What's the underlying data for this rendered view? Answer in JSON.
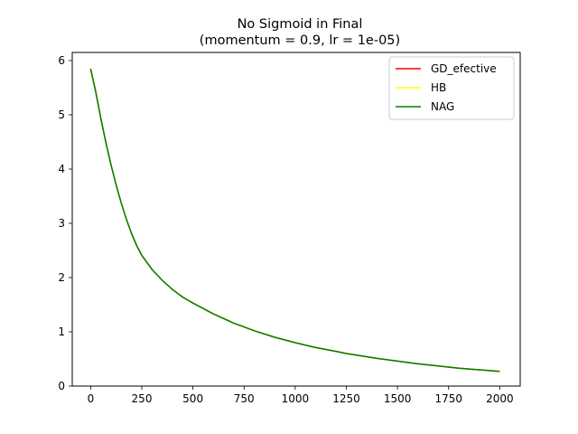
{
  "chart_data": {
    "type": "line",
    "title": "No Sigmoid in Final",
    "subtitle": "(momentum = 0.9, lr = 1e-05)",
    "xlabel": "",
    "ylabel": "",
    "xlim": [
      -90,
      2100
    ],
    "ylim": [
      0,
      6.15
    ],
    "xticks": [
      0,
      250,
      500,
      750,
      1000,
      1250,
      1500,
      1750,
      2000
    ],
    "xtick_labels": [
      "0",
      "250",
      "500",
      "750",
      "1000",
      "1250",
      "1500",
      "1750",
      "2000"
    ],
    "yticks": [
      0,
      1,
      2,
      3,
      4,
      5,
      6
    ],
    "ytick_labels": [
      "0",
      "1",
      "2",
      "3",
      "4",
      "5",
      "6"
    ],
    "grid": false,
    "legend_position": "top-right",
    "x": [
      0,
      25,
      50,
      75,
      100,
      125,
      150,
      175,
      200,
      225,
      250,
      300,
      350,
      400,
      450,
      500,
      600,
      700,
      750,
      800,
      900,
      1000,
      1100,
      1200,
      1250,
      1300,
      1400,
      1500,
      1600,
      1700,
      1750,
      1800,
      1900,
      2000
    ],
    "series": [
      {
        "name": "GD_efective",
        "color": "#ff0000",
        "values": [
          5.85,
          5.42,
          4.93,
          4.48,
          4.07,
          3.7,
          3.37,
          3.07,
          2.81,
          2.59,
          2.41,
          2.15,
          1.95,
          1.78,
          1.64,
          1.53,
          1.33,
          1.16,
          1.09,
          1.02,
          0.9,
          0.8,
          0.71,
          0.64,
          0.6,
          0.57,
          0.51,
          0.46,
          0.41,
          0.37,
          0.35,
          0.33,
          0.3,
          0.27
        ]
      },
      {
        "name": "HB",
        "color": "#ffff00",
        "values": [
          5.85,
          5.42,
          4.93,
          4.48,
          4.07,
          3.7,
          3.37,
          3.07,
          2.81,
          2.59,
          2.41,
          2.15,
          1.95,
          1.78,
          1.64,
          1.53,
          1.33,
          1.16,
          1.09,
          1.02,
          0.9,
          0.8,
          0.71,
          0.64,
          0.6,
          0.57,
          0.51,
          0.46,
          0.41,
          0.37,
          0.35,
          0.33,
          0.3,
          0.27
        ]
      },
      {
        "name": "NAG",
        "color": "#008000",
        "values": [
          5.85,
          5.42,
          4.93,
          4.48,
          4.07,
          3.7,
          3.37,
          3.07,
          2.81,
          2.59,
          2.41,
          2.15,
          1.95,
          1.78,
          1.64,
          1.53,
          1.33,
          1.16,
          1.09,
          1.02,
          0.9,
          0.8,
          0.71,
          0.64,
          0.6,
          0.57,
          0.51,
          0.46,
          0.41,
          0.37,
          0.35,
          0.33,
          0.3,
          0.27
        ]
      }
    ]
  }
}
